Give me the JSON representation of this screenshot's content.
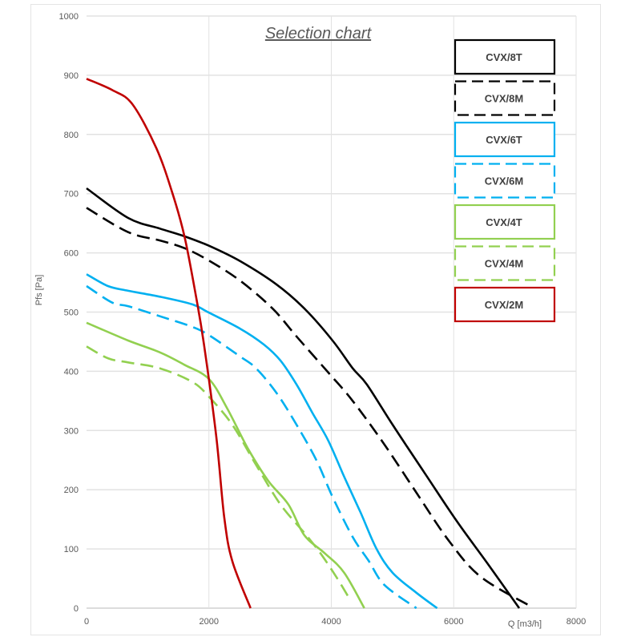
{
  "chart_data": {
    "type": "line",
    "title": "Selection chart",
    "xlabel": "Q [m3/h]",
    "ylabel": "Pfs [Pa]",
    "xlim": [
      0,
      8000
    ],
    "ylim": [
      0,
      1000
    ],
    "xticks": [
      0,
      2000,
      4000,
      6000,
      8000
    ],
    "yticks": [
      0,
      100,
      200,
      300,
      400,
      500,
      600,
      700,
      800,
      900,
      1000
    ],
    "grid": true,
    "legend_placement": "right",
    "series": [
      {
        "name": "CVX/8T",
        "color": "#000000",
        "dashed": false,
        "x": [
          0,
          680,
          1200,
          1600,
          2000,
          2510,
          3100,
          3560,
          4020,
          4350,
          4580,
          5000,
          5520,
          6050,
          6570,
          7070
        ],
        "y": [
          709,
          659,
          641,
          628,
          612,
          586,
          547,
          506,
          452,
          405,
          378,
          310,
          229,
          147,
          73,
          0
        ]
      },
      {
        "name": "CVX/8M",
        "color": "#000000",
        "dashed": true,
        "x": [
          0,
          680,
          1200,
          1600,
          2000,
          2510,
          3040,
          3430,
          3950,
          4350,
          4870,
          5390,
          5920,
          6440,
          7260
        ],
        "y": [
          676,
          635,
          621,
          608,
          587,
          553,
          506,
          459,
          398,
          350,
          276,
          195,
          114,
          53,
          3
        ]
      },
      {
        "name": "CVX/6T",
        "color": "#00b0f0",
        "dashed": false,
        "x": [
          0,
          350,
          680,
          1200,
          1730,
          2000,
          2510,
          2900,
          3170,
          3430,
          3690,
          3950,
          4210,
          4480,
          4740,
          5000,
          5390,
          5730
        ],
        "y": [
          564,
          544,
          536,
          526,
          513,
          499,
          472,
          445,
          418,
          378,
          330,
          283,
          222,
          161,
          100,
          60,
          26,
          0
        ]
      },
      {
        "name": "CVX/6M",
        "color": "#00b0f0",
        "dashed": true,
        "x": [
          0,
          420,
          680,
          1200,
          1730,
          2000,
          2510,
          2770,
          3100,
          3430,
          3760,
          4020,
          4350,
          4610,
          4870,
          5390
        ],
        "y": [
          544,
          516,
          510,
          493,
          475,
          461,
          425,
          405,
          364,
          310,
          249,
          188,
          120,
          80,
          39,
          0
        ]
      },
      {
        "name": "CVX/4T",
        "color": "#92d050",
        "dashed": false,
        "x": [
          0,
          680,
          1200,
          1600,
          2000,
          2300,
          2640,
          2970,
          3300,
          3560,
          3890,
          4210,
          4540
        ],
        "y": [
          482,
          452,
          432,
          411,
          387,
          337,
          269,
          215,
          175,
          123,
          93,
          60,
          0
        ]
      },
      {
        "name": "CVX/4M",
        "color": "#92d050",
        "dashed": true,
        "x": [
          0,
          350,
          680,
          1200,
          1730,
          2000,
          2380,
          2770,
          3170,
          3560,
          3820,
          4080,
          4320
        ],
        "y": [
          442,
          422,
          415,
          405,
          382,
          357,
          310,
          242,
          175,
          127,
          93,
          53,
          12
        ]
      },
      {
        "name": "CVX/2M",
        "color": "#c00000",
        "dashed": false,
        "x": [
          0,
          420,
          750,
          1140,
          1400,
          1600,
          1790,
          1920,
          2120,
          2250,
          2380,
          2680
        ],
        "y": [
          894,
          875,
          851,
          777,
          702,
          628,
          526,
          445,
          290,
          154,
          80,
          0
        ]
      }
    ]
  }
}
